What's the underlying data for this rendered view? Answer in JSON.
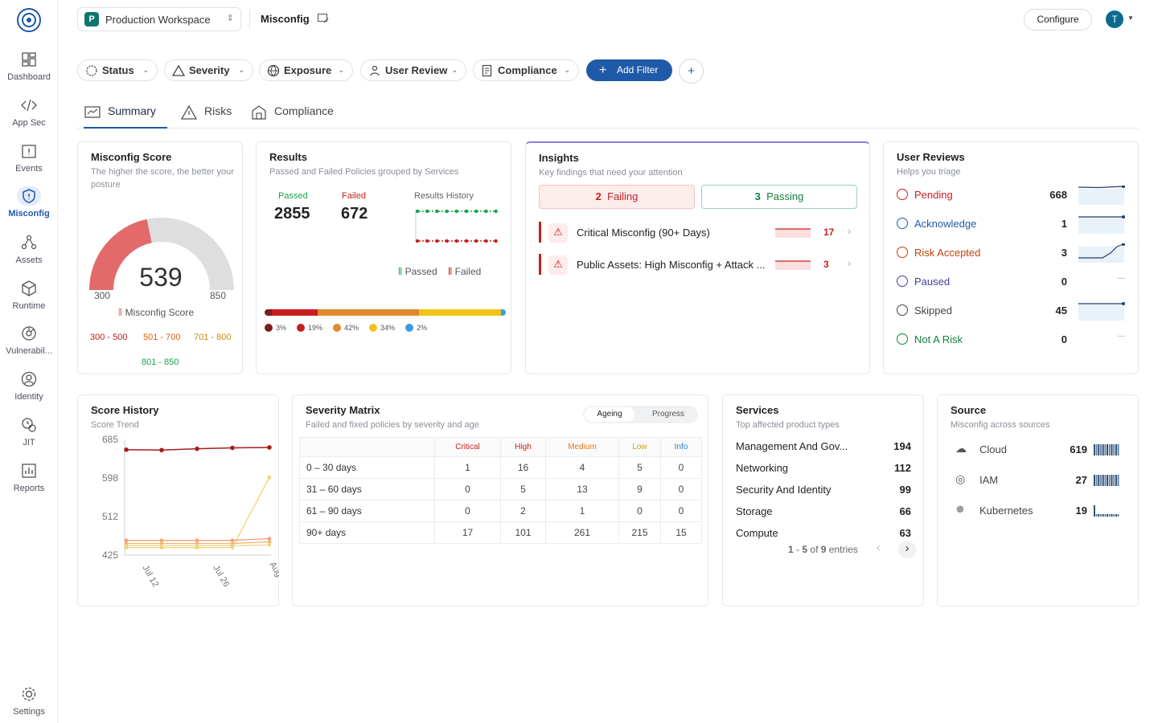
{
  "sidebar": {
    "items": [
      {
        "label": "Dashboard",
        "icon": "dashboard-icon"
      },
      {
        "label": "App Sec",
        "icon": "code-icon"
      },
      {
        "label": "Events",
        "icon": "events-icon"
      },
      {
        "label": "Misconfig",
        "icon": "shield-icon",
        "active": true
      },
      {
        "label": "Assets",
        "icon": "assets-icon"
      },
      {
        "label": "Runtime",
        "icon": "cube-icon"
      },
      {
        "label": "Vulnerabil...",
        "icon": "bug-icon"
      },
      {
        "label": "Identity",
        "icon": "identity-icon"
      },
      {
        "label": "JIT",
        "icon": "jit-icon"
      },
      {
        "label": "Reports",
        "icon": "reports-icon"
      }
    ],
    "settings": "Settings"
  },
  "header": {
    "workspace_initial": "P",
    "workspace": "Production Workspace",
    "page_title": "Misconfig",
    "configure": "Configure",
    "avatar": "T"
  },
  "filters": {
    "items": [
      "Status",
      "Severity",
      "Exposure",
      "User Review",
      "Compliance"
    ],
    "add_filter": "Add Filter",
    "plus": "+"
  },
  "tabs": [
    "Summary",
    "Risks",
    "Compliance"
  ],
  "score": {
    "title": "Misconfig Score",
    "subtitle": "The higher the score, the better your posture",
    "value": "539",
    "min": "300",
    "max": "850",
    "legend": "Misconfig Score",
    "value_num": 539,
    "ranges": [
      {
        "label": "300 - 500",
        "color": "#b91c1c"
      },
      {
        "label": "501 - 700",
        "color": "#ea580c"
      },
      {
        "label": "701 - 800",
        "color": "#ca8a04"
      },
      {
        "label": "801 - 850",
        "color": "#16a34a"
      }
    ]
  },
  "results": {
    "title": "Results",
    "subtitle": "Passed and Failed Policies grouped by Services",
    "passed_label": "Passed",
    "failed_label": "Failed",
    "passed": "2855",
    "failed": "672",
    "history_label": "Results History",
    "legend_passed": "Passed",
    "legend_failed": "Failed",
    "bar": [
      {
        "pct": "3%",
        "value": 3,
        "color": "#7f1d1d"
      },
      {
        "pct": "19%",
        "value": 19,
        "color": "#c81e1e"
      },
      {
        "pct": "42%",
        "value": 42,
        "color": "#e08a2c"
      },
      {
        "pct": "34%",
        "value": 34,
        "color": "#f0c419"
      },
      {
        "pct": "2%",
        "value": 2,
        "color": "#3b9be8"
      }
    ]
  },
  "insights": {
    "title": "Insights",
    "subtitle": "Key findings that need your attention",
    "failing_count": "2",
    "failing": "Failing",
    "passing_count": "3",
    "passing": "Passing",
    "items": [
      {
        "label": "Critical Misconfig (90+ Days)",
        "count": "17"
      },
      {
        "label": "Public Assets: High Misconfig + Attack ...",
        "count": "3"
      }
    ]
  },
  "reviews": {
    "title": "User Reviews",
    "subtitle": "Helps you triage",
    "items": [
      {
        "label": "Pending",
        "count": "668",
        "color": "#c81e1e",
        "icon": "pending-icon"
      },
      {
        "label": "Acknowledge",
        "count": "1",
        "color": "#1f5aa8",
        "icon": "check-circle-icon"
      },
      {
        "label": "Risk Accepted",
        "count": "3",
        "color": "#c2410c",
        "icon": "risk-accepted-icon"
      },
      {
        "label": "Paused",
        "count": "0",
        "color": "#3f3f9e",
        "icon": "pause-icon"
      },
      {
        "label": "Skipped",
        "count": "45",
        "color": "#444",
        "icon": "skip-icon"
      },
      {
        "label": "Not A Risk",
        "count": "0",
        "color": "#15803d",
        "icon": "not-equal-icon"
      }
    ],
    "dash": "—"
  },
  "history": {
    "title": "Score History",
    "subtitle": "Score Trend"
  },
  "chart_data": {
    "type": "line",
    "ylim": [
      425,
      685
    ],
    "yticks": [
      "685",
      "598",
      "512",
      "425"
    ],
    "xticks": [
      "Jul 12",
      "Jul 26",
      "Aug"
    ],
    "series": [
      {
        "color": "#a51d1d",
        "values": [
          662,
          661,
          664,
          666,
          667
        ]
      },
      {
        "color": "#f2d36b",
        "values": [
          442,
          442,
          442,
          442,
          600
        ]
      },
      {
        "color": "#f0a080",
        "values": [
          458,
          458,
          458,
          458,
          462
        ]
      },
      {
        "color": "#f5b56a",
        "values": [
          451,
          451,
          451,
          451,
          455
        ]
      },
      {
        "color": "#ecd58d",
        "values": [
          446,
          446,
          446,
          446,
          448
        ]
      }
    ]
  },
  "matrix": {
    "title": "Severity Matrix",
    "subtitle": "Failed and fixed policies by severity and age",
    "toggle": [
      "Ageing",
      "Progress"
    ],
    "headers": [
      "Critical",
      "High",
      "Medium",
      "Low",
      "Info"
    ],
    "header_colors": [
      "#c81e1e",
      "#c81e1e",
      "#e0761f",
      "#c9a21a",
      "#2a7ad6"
    ],
    "rows": [
      {
        "label": "0 – 30 days",
        "values": [
          "1",
          "16",
          "4",
          "5",
          "0"
        ]
      },
      {
        "label": "31 – 60 days",
        "values": [
          "0",
          "5",
          "13",
          "9",
          "0"
        ]
      },
      {
        "label": "61 – 90 days",
        "values": [
          "0",
          "2",
          "1",
          "0",
          "0"
        ]
      },
      {
        "label": "90+ days",
        "values": [
          "17",
          "101",
          "261",
          "215",
          "15"
        ]
      }
    ]
  },
  "services": {
    "title": "Services",
    "subtitle": "Top affected product types",
    "items": [
      {
        "label": "Management And Gov...",
        "count": "194"
      },
      {
        "label": "Networking",
        "count": "112"
      },
      {
        "label": "Security And Identity",
        "count": "99"
      },
      {
        "label": "Storage",
        "count": "66"
      },
      {
        "label": "Compute",
        "count": "63"
      }
    ],
    "pg_start": "1",
    "pg_dash": "-",
    "pg_end": "5",
    "pg_of": "of",
    "pg_total": "9",
    "pg_entries": "entries"
  },
  "source": {
    "title": "Source",
    "subtitle": "Misconfig across sources",
    "items": [
      {
        "label": "Cloud",
        "count": "619",
        "icon": "cloud-icon"
      },
      {
        "label": "IAM",
        "count": "27",
        "icon": "fingerprint-icon"
      },
      {
        "label": "Kubernetes",
        "count": "19",
        "icon": "kubernetes-icon"
      }
    ]
  }
}
